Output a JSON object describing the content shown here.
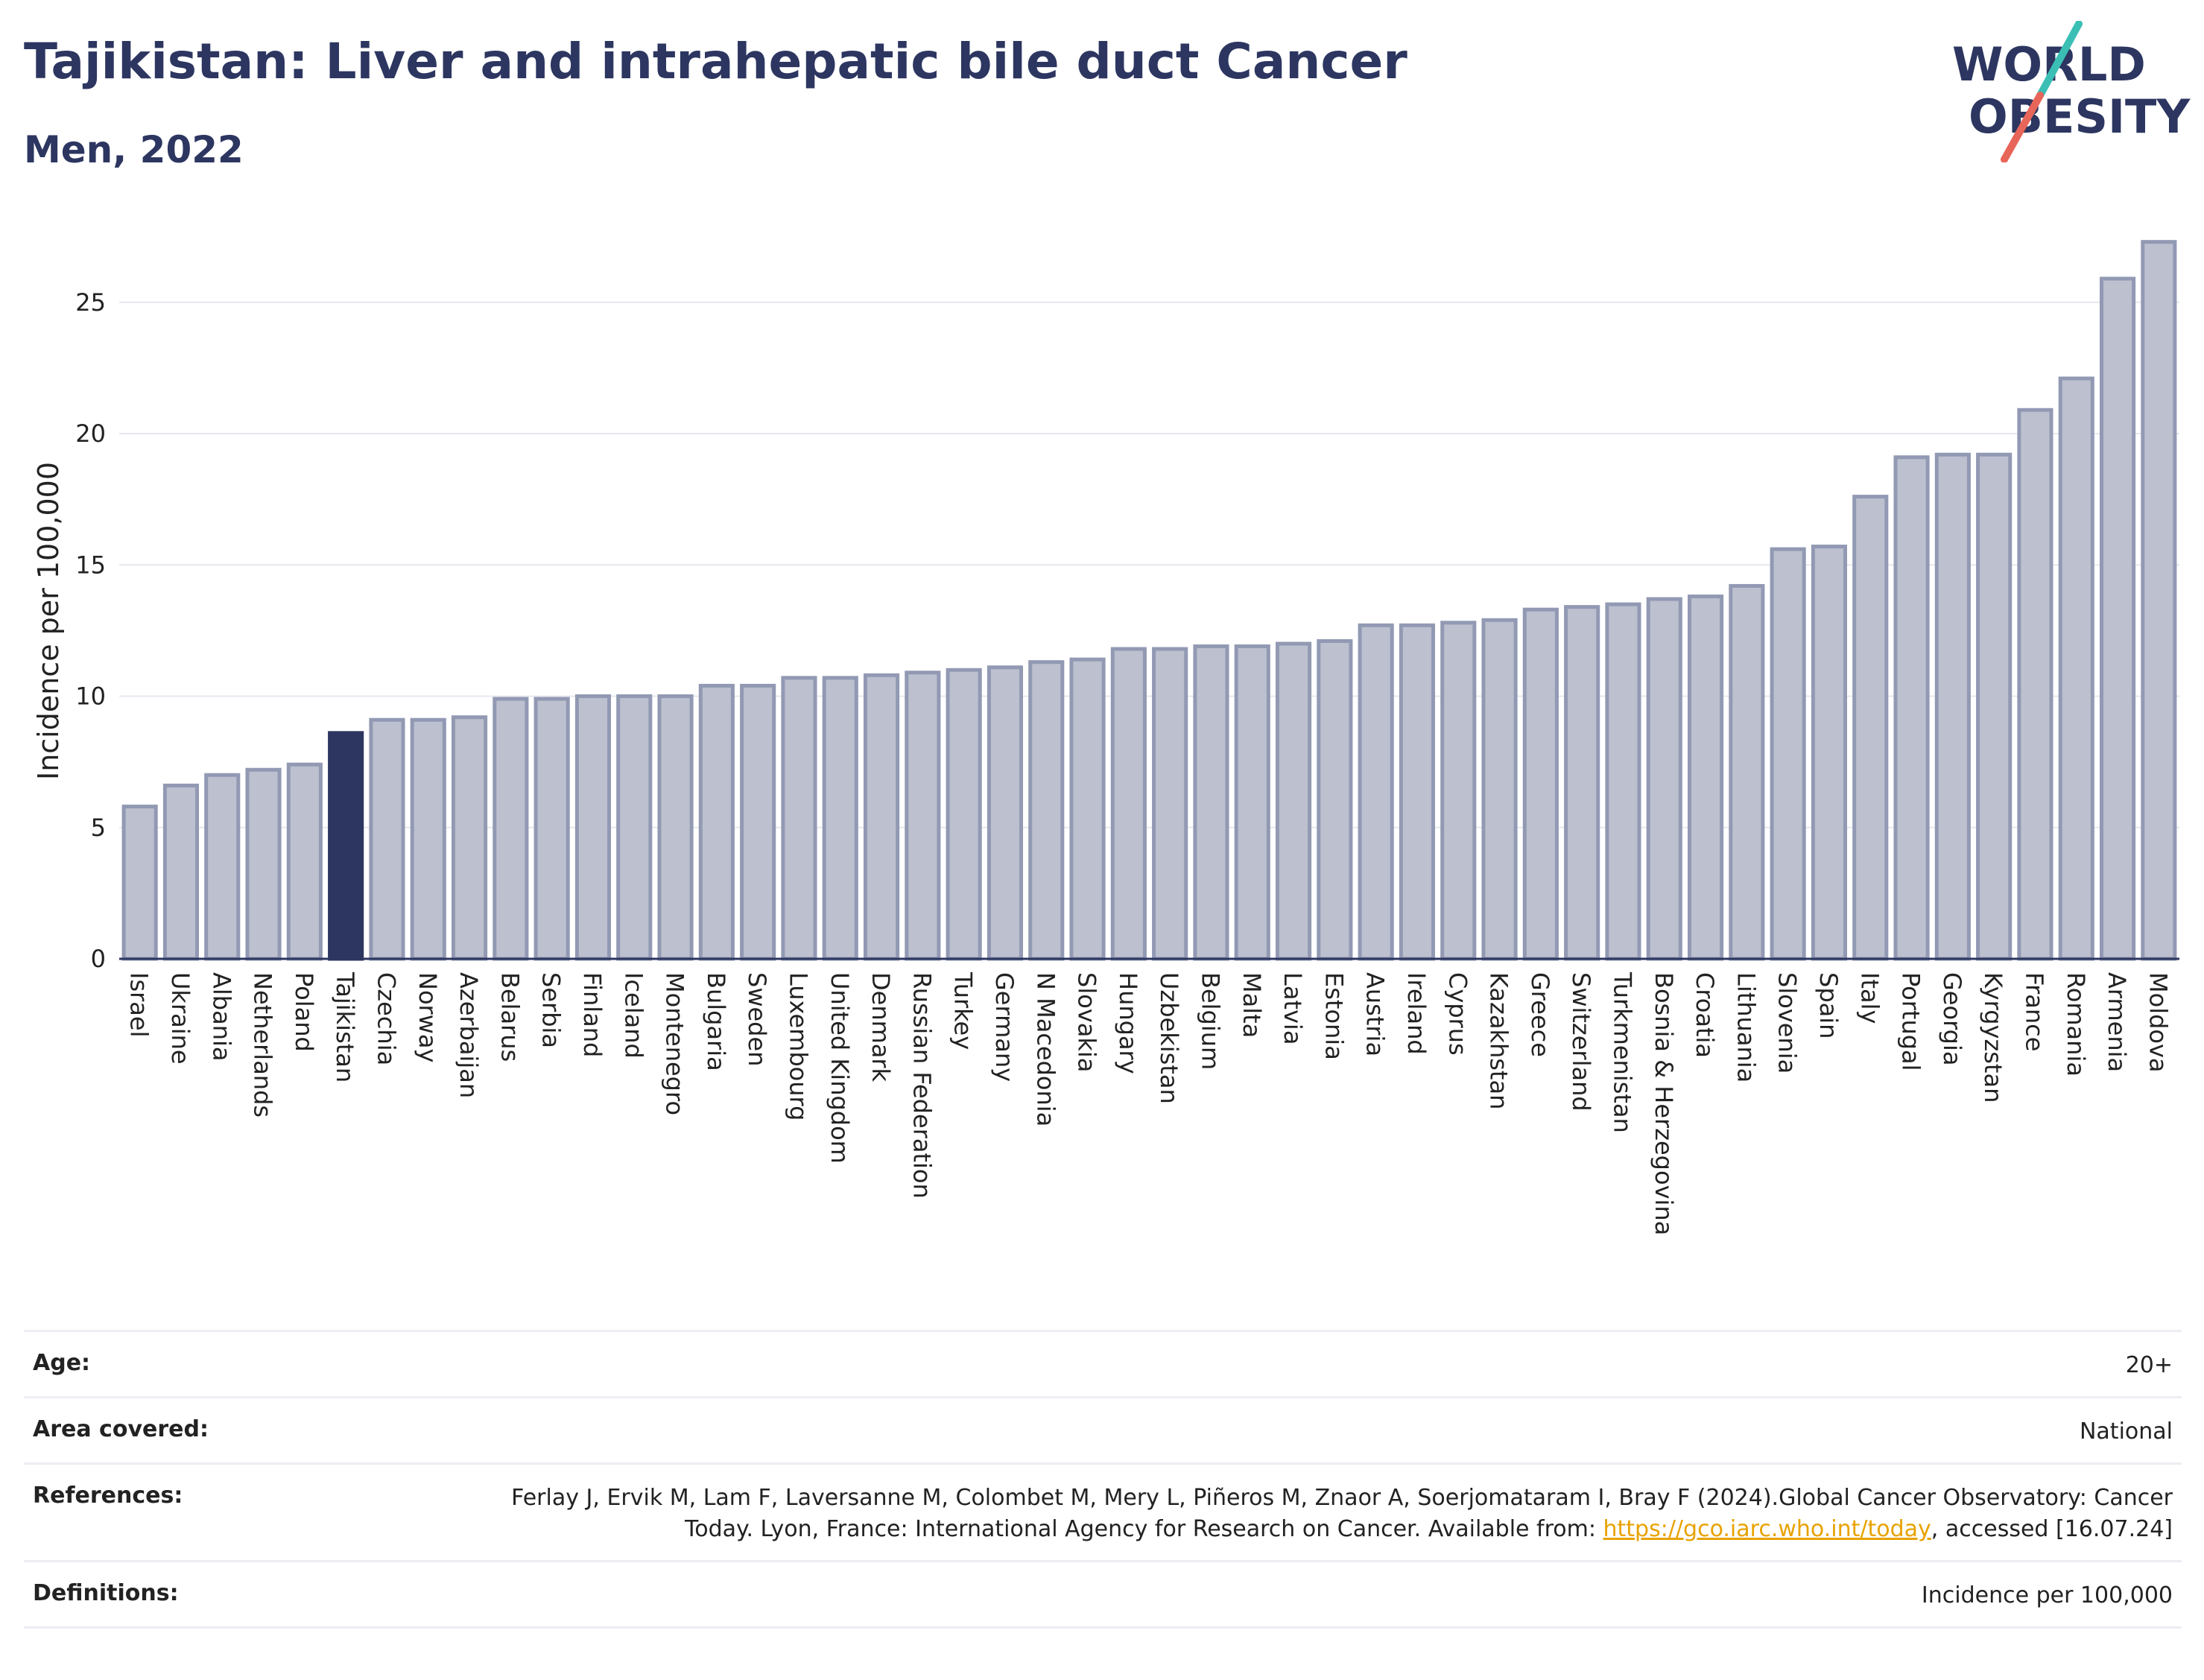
{
  "header": {
    "title": "Tajikistan: Liver and intrahepatic bile duct Cancer",
    "subtitle": "Men, 2022"
  },
  "logo": {
    "line1": "WORLD",
    "line2": "OBESITY"
  },
  "colors": {
    "bar": "#bcc0cf",
    "bar_border": "#9299b3",
    "highlight": "#2c3660",
    "title": "#2c3660",
    "link": "#e8a200",
    "logo_teal": "#3bbfb5",
    "logo_red": "#e8655a"
  },
  "chart_data": {
    "type": "bar",
    "title": "Tajikistan: Liver and intrahepatic bile duct Cancer",
    "subtitle": "Men, 2022",
    "xlabel": "",
    "ylabel": "Incidence per 100,000",
    "ylim": [
      0,
      28
    ],
    "yticks": [
      0,
      5,
      10,
      15,
      20,
      25
    ],
    "grid": true,
    "highlight": "Tajikistan",
    "categories": [
      "Israel",
      "Ukraine",
      "Albania",
      "Netherlands",
      "Poland",
      "Tajikistan",
      "Czechia",
      "Norway",
      "Azerbaijan",
      "Belarus",
      "Serbia",
      "Finland",
      "Iceland",
      "Montenegro",
      "Bulgaria",
      "Sweden",
      "Luxembourg",
      "United Kingdom",
      "Denmark",
      "Russian Federation",
      "Turkey",
      "Germany",
      "N Macedonia",
      "Slovakia",
      "Hungary",
      "Uzbekistan",
      "Belgium",
      "Malta",
      "Latvia",
      "Estonia",
      "Austria",
      "Ireland",
      "Cyprus",
      "Kazakhstan",
      "Greece",
      "Switzerland",
      "Turkmenistan",
      "Bosnia & Herzegovina",
      "Croatia",
      "Lithuania",
      "Slovenia",
      "Spain",
      "Italy",
      "Portugal",
      "Georgia",
      "Kyrgyzstan",
      "France",
      "Romania",
      "Armenia",
      "Moldova"
    ],
    "values": [
      5.8,
      6.6,
      7.0,
      7.2,
      7.4,
      8.6,
      9.1,
      9.1,
      9.2,
      9.9,
      9.9,
      10.0,
      10.0,
      10.0,
      10.4,
      10.4,
      10.7,
      10.7,
      10.8,
      10.9,
      11.0,
      11.1,
      11.3,
      11.4,
      11.8,
      11.8,
      11.9,
      11.9,
      12.0,
      12.1,
      12.7,
      12.7,
      12.8,
      12.9,
      13.3,
      13.4,
      13.5,
      13.7,
      13.8,
      14.2,
      15.6,
      15.7,
      17.6,
      19.1,
      19.2,
      19.2,
      20.9,
      22.1,
      25.9,
      27.3
    ]
  },
  "metadata": {
    "age": {
      "label": "Age:",
      "value": "20+"
    },
    "area": {
      "label": "Area covered:",
      "value": "National"
    },
    "references": {
      "label": "References:",
      "text_before": "Ferlay J, Ervik M, Lam F, Laversanne M, Colombet M, Mery L, Piñeros M, Znaor A, Soerjomataram I, Bray F (2024).Global Cancer Observatory: Cancer Today. Lyon, France: International Agency for Research on Cancer. Available from: ",
      "link": "https://gco.iarc.who.int/today",
      "text_after": ", accessed [16.07.24]"
    },
    "definitions": {
      "label": "Definitions:",
      "value": "Incidence per 100,000"
    }
  }
}
